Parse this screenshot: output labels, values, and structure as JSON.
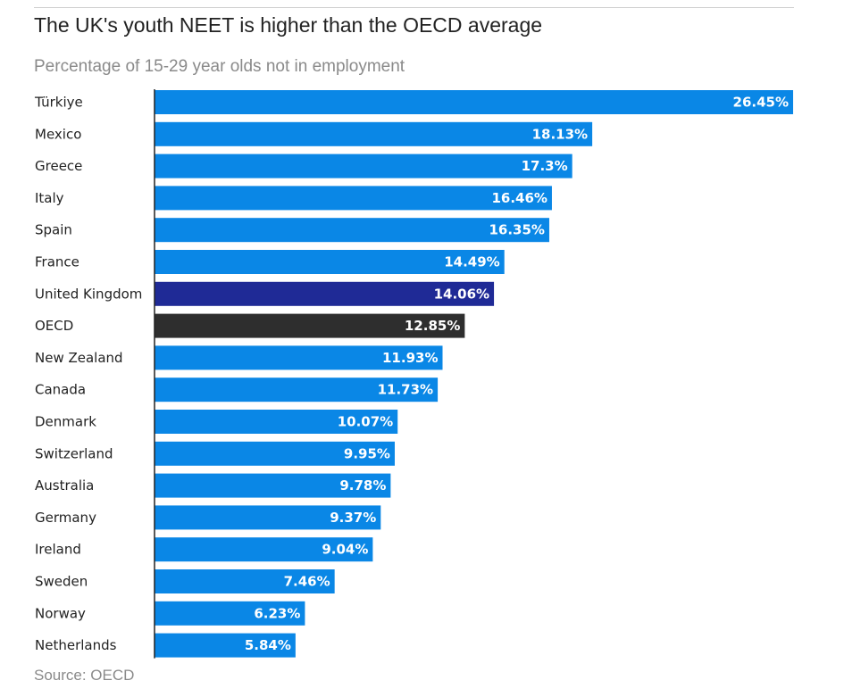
{
  "title": "The UK's youth NEET is higher than the OECD average",
  "subtitle": "Percentage of 15-29 year olds not in employment",
  "source": "Source: OECD",
  "colors": {
    "default_bar": "#0a87e6",
    "highlight_uk": "#1f2a96",
    "highlight_oecd": "#2e2e2e",
    "axis": "#222222"
  },
  "chart_data": {
    "type": "bar",
    "orientation": "horizontal",
    "title": "The UK's youth NEET is higher than the OECD average",
    "subtitle": "Percentage of 15-29 year olds not in employment",
    "categories": [
      "Türkiye",
      "Mexico",
      "Greece",
      "Italy",
      "Spain",
      "France",
      "United Kingdom",
      "OECD",
      "New Zealand",
      "Canada",
      "Denmark",
      "Switzerland",
      "Australia",
      "Germany",
      "Ireland",
      "Sweden",
      "Norway",
      "Netherlands"
    ],
    "values": [
      26.45,
      18.13,
      17.3,
      16.46,
      16.35,
      14.49,
      14.06,
      12.85,
      11.93,
      11.73,
      10.07,
      9.95,
      9.78,
      9.37,
      9.04,
      7.46,
      6.23,
      5.84
    ],
    "value_labels": [
      "26.45%",
      "18.13%",
      "17.3%",
      "16.46%",
      "16.35%",
      "14.49%",
      "14.06%",
      "12.85%",
      "11.93%",
      "11.73%",
      "10.07%",
      "9.95%",
      "9.78%",
      "9.37%",
      "9.04%",
      "7.46%",
      "6.23%",
      "5.84%"
    ],
    "highlight": {
      "United Kingdom": "highlight_uk",
      "OECD": "highlight_oecd"
    },
    "xlim": [
      0,
      26.45
    ],
    "grid": false,
    "xlabel": "",
    "ylabel": ""
  }
}
